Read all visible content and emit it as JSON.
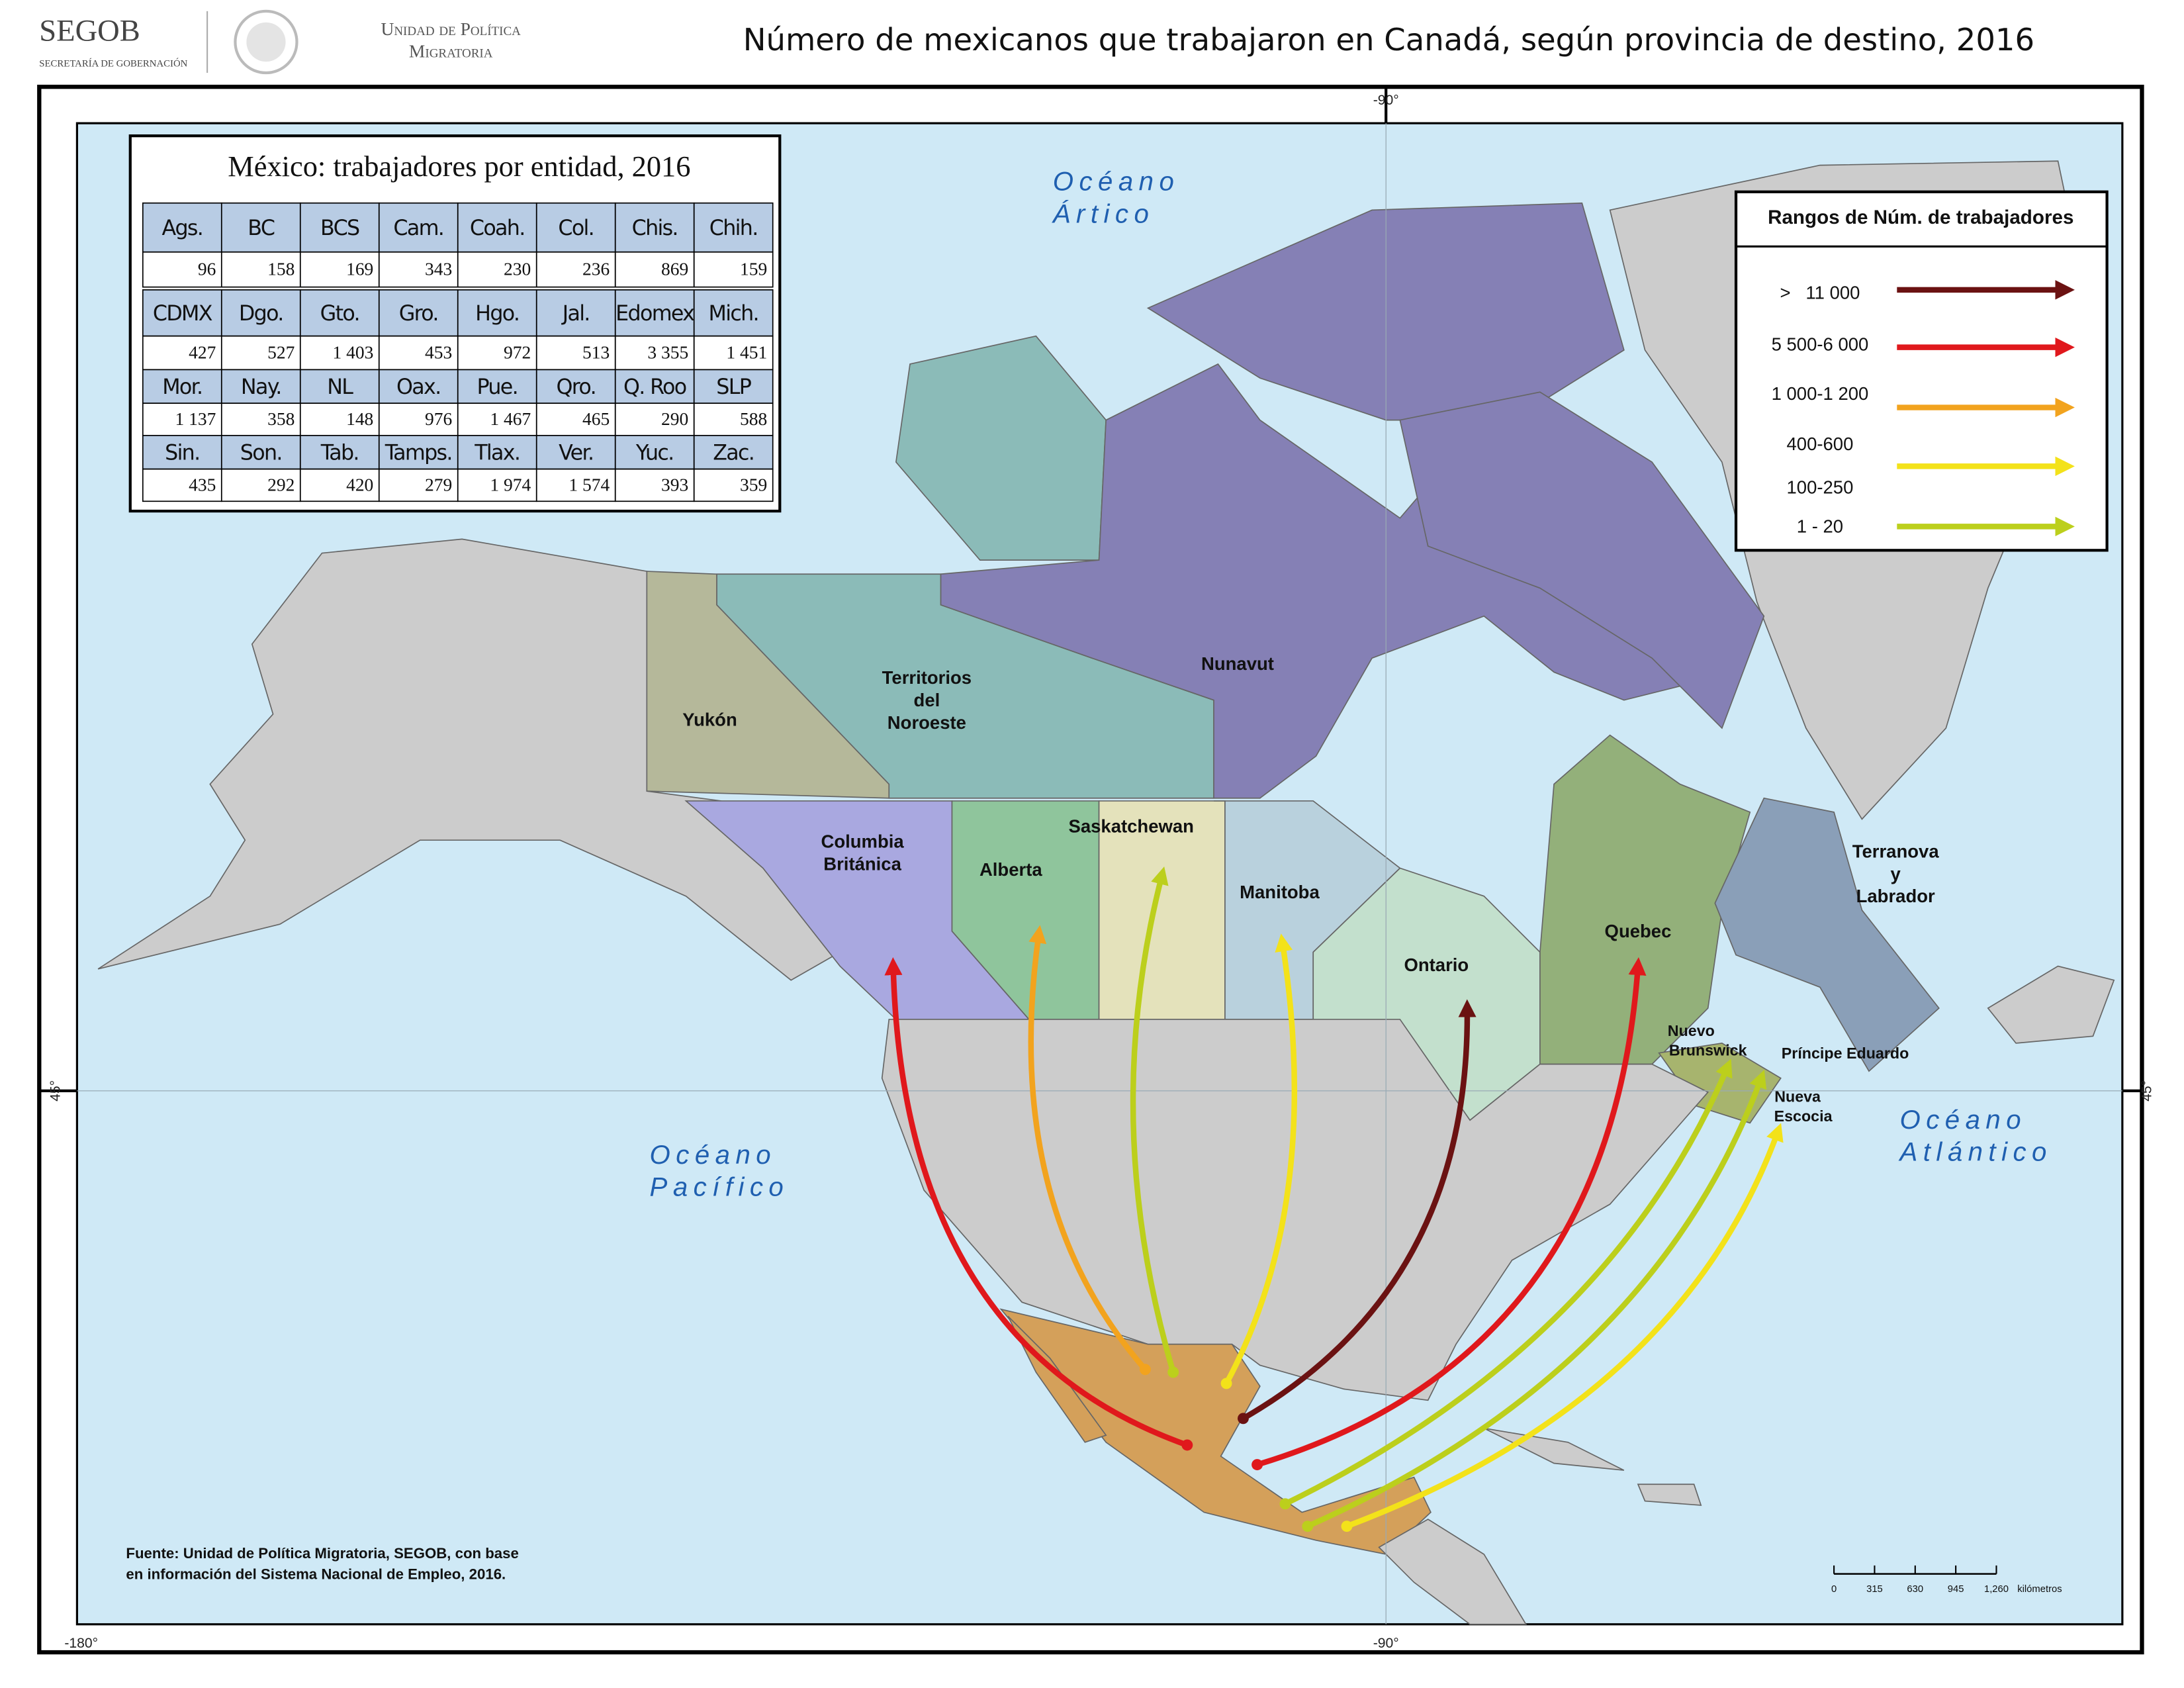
{
  "header": {
    "logo": "SEGOB",
    "logo_sub": "SECRETARÍA DE GOBERNACIÓN",
    "unit": [
      "Unidad de Política",
      "Migratoria"
    ],
    "title": "Número de mexicanos que trabajaron en Canadá, según provincia de destino, 2016"
  },
  "table": {
    "title": "México: trabajadores por entidad, 2016",
    "groups": [
      {
        "headers": [
          "Ags.",
          "BC",
          "BCS",
          "Cam.",
          "Coah.",
          "Col.",
          "Chis.",
          "Chih."
        ],
        "values": [
          "96",
          "158",
          "169",
          "343",
          "230",
          "236",
          "869",
          "159"
        ]
      },
      {
        "headers": [
          "CDMX",
          "Dgo.",
          "Gto.",
          "Gro.",
          "Hgo.",
          "Jal.",
          "Edomex",
          "Mich."
        ],
        "values": [
          "427",
          "527",
          "1 403",
          "453",
          "972",
          "513",
          "3 355",
          "1 451"
        ]
      },
      {
        "headers": [
          "Mor.",
          "Nay.",
          "NL",
          "Oax.",
          "Pue.",
          "Qro.",
          "Q. Roo",
          "SLP"
        ],
        "values": [
          "1 137",
          "358",
          "148",
          "976",
          "1 467",
          "465",
          "290",
          "588"
        ]
      },
      {
        "headers": [
          "Sin.",
          "Son.",
          "Tab.",
          "Tamps.",
          "Tlax.",
          "Ver.",
          "Yuc.",
          "Zac."
        ],
        "values": [
          "435",
          "292",
          "420",
          "279",
          "1 974",
          "1 574",
          "393",
          "359"
        ]
      }
    ]
  },
  "legend": {
    "title": "Rangos de  Núm. de trabajadores",
    "items": [
      {
        "labels": [
          ">   11 000"
        ],
        "color": "#6b1212"
      },
      {
        "labels": [
          "5 500-6 000"
        ],
        "color": "#e0181c"
      },
      {
        "labels": [
          "1 000-1 200"
        ],
        "color": "#f2a31e"
      },
      {
        "labels": [
          "400-600",
          "100-250"
        ],
        "color": "#f3e21a"
      },
      {
        "labels": [
          "1 - 20"
        ],
        "color": "#bccf1c"
      }
    ]
  },
  "regions": [
    {
      "lines": [
        "Yukón"
      ]
    },
    {
      "lines": [
        "Territorios",
        "del",
        "Noroeste"
      ]
    },
    {
      "lines": [
        "Nunavut"
      ]
    },
    {
      "lines": [
        "Columbia",
        "Británica"
      ]
    },
    {
      "lines": [
        "Alberta"
      ]
    },
    {
      "lines": [
        "Saskatchewan"
      ]
    },
    {
      "lines": [
        "Manitoba"
      ]
    },
    {
      "lines": [
        "Ontario"
      ]
    },
    {
      "lines": [
        "Quebec"
      ]
    },
    {
      "lines": [
        "Terranova",
        "y",
        "Labrador"
      ]
    },
    {
      "lines": [
        "Nuevo",
        "Brunswick"
      ]
    },
    {
      "lines": [
        "Príncipe Eduardo"
      ]
    },
    {
      "lines": [
        "Nueva",
        "Escocia"
      ]
    }
  ],
  "oceans": [
    {
      "lines": [
        "Océano",
        "Ártico"
      ]
    },
    {
      "lines": [
        "Océano",
        "Pacífico"
      ]
    },
    {
      "lines": [
        "Océano",
        "Atlántico"
      ]
    }
  ],
  "graticule": {
    "top": "-90°",
    "bottom_left": "-180°",
    "bottom": "-90°",
    "left": "45°",
    "right": "45°"
  },
  "source": [
    "Fuente: Unidad de Política Migratoria, SEGOB, con base",
    "en información  del Sistema Nacional de Empleo, 2016."
  ],
  "scale": {
    "ticks": [
      "0",
      "315",
      "630",
      "945",
      "1,260"
    ],
    "unit": "kilómetros"
  }
}
